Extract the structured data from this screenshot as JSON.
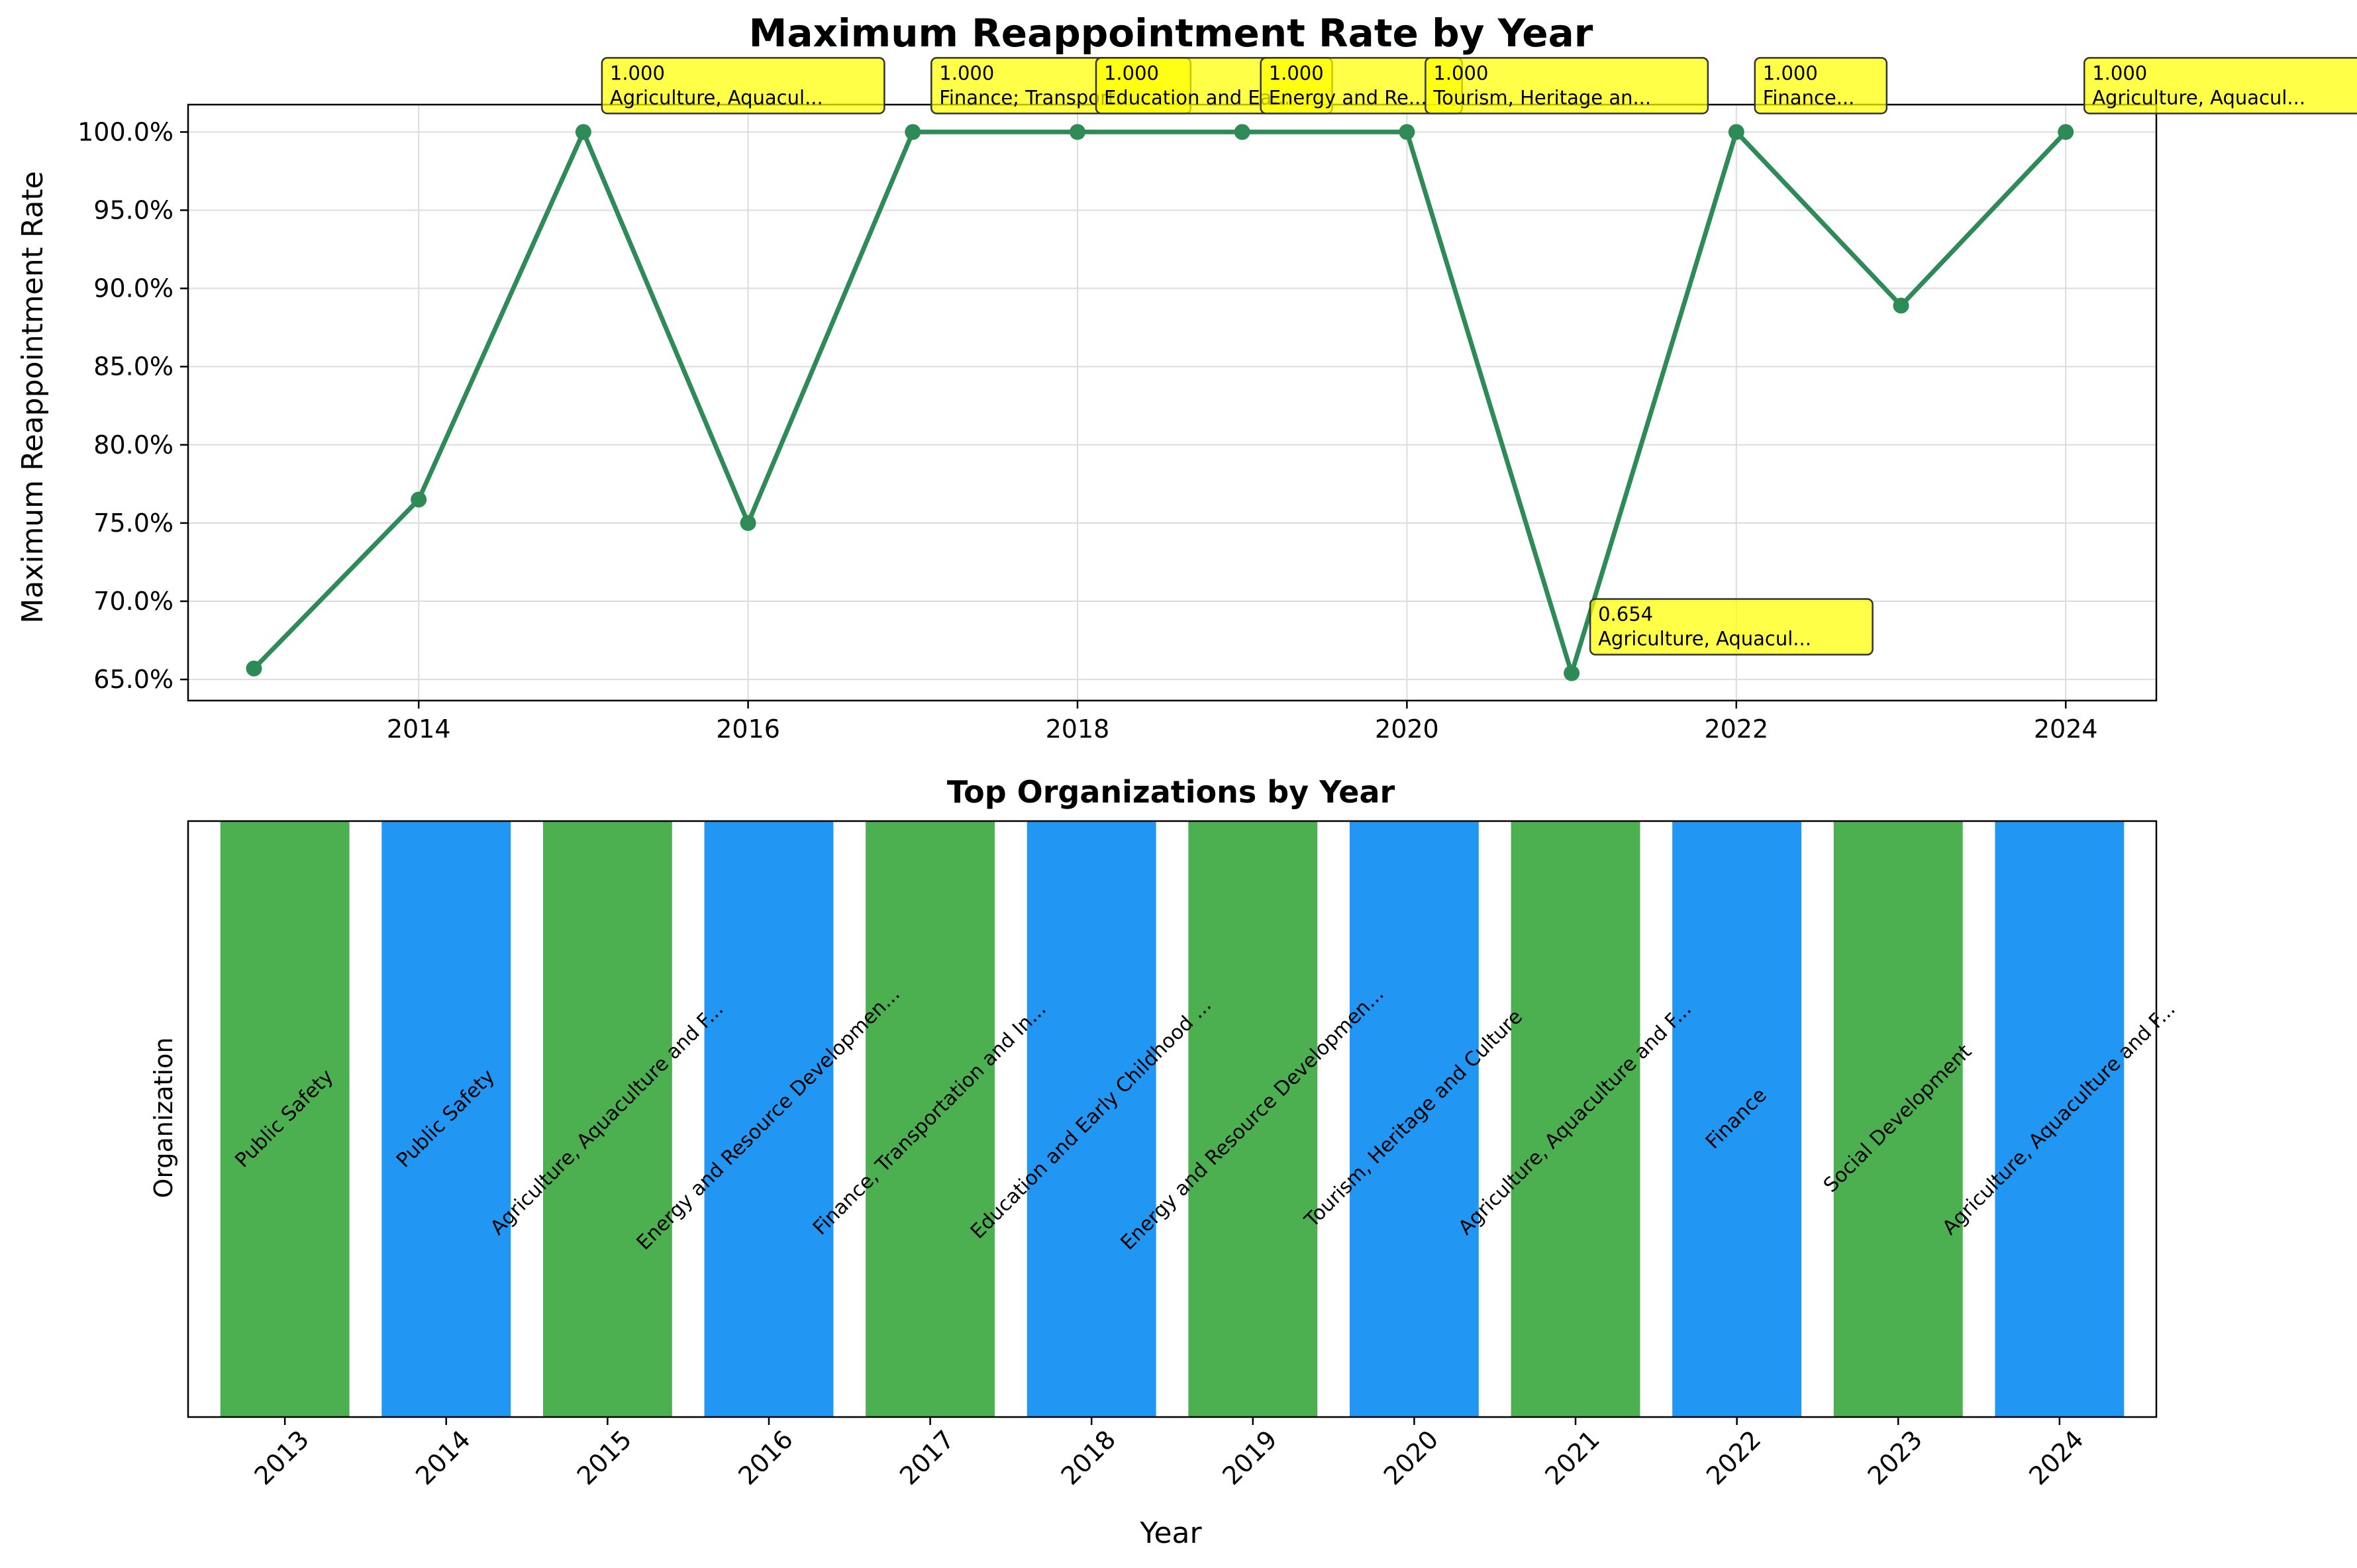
{
  "chart_data": [
    {
      "type": "line",
      "title": "Maximum Reappointment Rate by Year",
      "xlabel": "",
      "ylabel": "Maximum Reappointment Rate",
      "xlim": [
        2012.6,
        2024.55
      ],
      "ylim": [
        0.6365,
        1.0175
      ],
      "x_ticks": [
        2014,
        2016,
        2018,
        2020,
        2022,
        2024
      ],
      "x_tick_labels": [
        "2014",
        "2016",
        "2018",
        "2020",
        "2022",
        "2024"
      ],
      "y_ticks": [
        0.65,
        0.7,
        0.75,
        0.8,
        0.85,
        0.9,
        0.95,
        1.0
      ],
      "y_tick_labels": [
        "65.0%",
        "70.0%",
        "75.0%",
        "80.0%",
        "85.0%",
        "90.0%",
        "95.0%",
        "100.0%"
      ],
      "grid": true,
      "color": "#2e8b57",
      "x": [
        2013,
        2014,
        2015,
        2016,
        2017,
        2018,
        2019,
        2020,
        2021,
        2022,
        2023,
        2024
      ],
      "y": [
        0.657,
        0.765,
        1.0,
        0.75,
        1.0,
        1.0,
        1.0,
        1.0,
        0.654,
        1.0,
        0.889,
        1.0
      ],
      "annotation_color": "#ffff00",
      "annotations": [
        {
          "x": 2015,
          "y": 1.0,
          "value": "1.000",
          "label": "Agriculture, Aquacul..."
        },
        {
          "x": 2017,
          "y": 1.0,
          "value": "1.000",
          "label": "Finance; Transport..."
        },
        {
          "x": 2018,
          "y": 1.0,
          "value": "1.000",
          "label": "Education and Ea..."
        },
        {
          "x": 2019,
          "y": 1.0,
          "value": "1.000",
          "label": "Energy and Re..."
        },
        {
          "x": 2020,
          "y": 1.0,
          "value": "1.000",
          "label": "Tourism, Heritage an..."
        },
        {
          "x": 2021,
          "y": 0.654,
          "value": "0.654",
          "label": "Agriculture, Aquacul..."
        },
        {
          "x": 2022,
          "y": 1.0,
          "value": "1.000",
          "label": "Finance..."
        },
        {
          "x": 2024,
          "y": 1.0,
          "value": "1.000",
          "label": "Agriculture, Aquacul..."
        }
      ]
    },
    {
      "type": "bar",
      "title": "Top Organizations by Year",
      "xlabel": "Year",
      "ylabel": "Organization",
      "categories": [
        "2013",
        "2014",
        "2015",
        "2016",
        "2017",
        "2018",
        "2019",
        "2020",
        "2021",
        "2022",
        "2023",
        "2024"
      ],
      "values": [
        1,
        1,
        1,
        1,
        1,
        1,
        1,
        1,
        1,
        1,
        1,
        1
      ],
      "ylim": [
        0,
        1
      ],
      "colors": [
        "#4caf50",
        "#2196f3"
      ],
      "labels": [
        "Public Safety",
        "Public Safety",
        "Agriculture, Aquaculture and F...",
        "Energy and Resource Developmen...",
        "Finance, Transportation and In...",
        "Education and Early Childhood ...",
        "Energy and Resource Developmen...",
        "Tourism, Heritage and Culture",
        "Agriculture, Aquaculture and F...",
        "Finance",
        "Social Development",
        "Agriculture, Aquaculture and F..."
      ]
    }
  ]
}
